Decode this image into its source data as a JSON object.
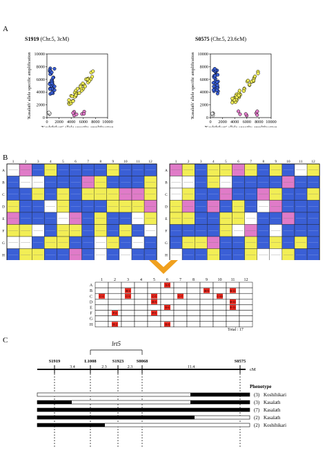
{
  "panels": {
    "a": "A",
    "b": "B",
    "c": "C"
  },
  "scatter": [
    {
      "marker": "S1919",
      "position": "(Chr.5, 3cM)",
      "xlabel": "'Koshihikari' allele specific amplification",
      "ylabel": "'Kasalath' allele specific amplification",
      "xticks": [
        "0",
        "2000",
        "4000",
        "6000",
        "8000",
        "10000"
      ],
      "yticks": [
        "0",
        "2000",
        "4000",
        "6000",
        "8000",
        "10000"
      ]
    },
    {
      "marker": "S0575",
      "position": "(Chr.5, 23.6cM)",
      "xlabel": "'Koshihikari' allele specific amplification",
      "ylabel": "'Kasalath' allele specific amplification",
      "xticks": [
        "0",
        "2000",
        "4000",
        "6000",
        "8000",
        "10000"
      ],
      "yticks": [
        "0",
        "2000",
        "4000",
        "6000",
        "8000",
        "10000"
      ]
    }
  ],
  "colors": {
    "blue": "#3a5fd6",
    "yellow": "#f2ee55",
    "pink": "#e07bc8",
    "red": "#e8261c",
    "arrow": "#f0a01e"
  },
  "plate": {
    "cols": [
      "1",
      "2",
      "3",
      "4",
      "5",
      "6",
      "7",
      "8",
      "9",
      "10",
      "11",
      "12"
    ],
    "rows": [
      "A",
      "B",
      "C",
      "D",
      "E",
      "F",
      "G",
      "H"
    ]
  },
  "recombinants": {
    "cells": [
      {
        "row": "A",
        "col": 6,
        "label": "A-6"
      },
      {
        "row": "B",
        "col": 3,
        "label": "B-3"
      },
      {
        "row": "B",
        "col": 9,
        "label": "B-9"
      },
      {
        "row": "B",
        "col": 11,
        "label": "B-11"
      },
      {
        "row": "C",
        "col": 1,
        "label": "C-1"
      },
      {
        "row": "C",
        "col": 3,
        "label": "C-3"
      },
      {
        "row": "C",
        "col": 5,
        "label": "C-5"
      },
      {
        "row": "C",
        "col": 7,
        "label": "C-7"
      },
      {
        "row": "C",
        "col": 10,
        "label": "C-10"
      },
      {
        "row": "D",
        "col": 5,
        "label": "D-5"
      },
      {
        "row": "D",
        "col": 11,
        "label": "D-11"
      },
      {
        "row": "E",
        "col": 6,
        "label": "E-6"
      },
      {
        "row": "E",
        "col": 11,
        "label": "E-11"
      },
      {
        "row": "F",
        "col": 2,
        "label": "F-2"
      },
      {
        "row": "F",
        "col": 5,
        "label": "F-5"
      },
      {
        "row": "H",
        "col": 2,
        "label": "H-2"
      },
      {
        "row": "H",
        "col": 6,
        "label": "H-6"
      }
    ],
    "total": "Total : 17"
  },
  "map": {
    "qtl": "lrt5",
    "unit": "cM",
    "markers": [
      "S1919",
      "L1008",
      "S1923",
      "S0068",
      "S0575"
    ],
    "distances": [
      "3.4",
      "2.3",
      "2.3",
      "11.4"
    ],
    "phenotype_header": "Phenotype",
    "rows": [
      {
        "count": "(3)",
        "phenotype": "Koshihikari"
      },
      {
        "count": "(3)",
        "phenotype": "Kasalath"
      },
      {
        "count": "(7)",
        "phenotype": "Kasalath"
      },
      {
        "count": "(2)",
        "phenotype": "Kasalath"
      },
      {
        "count": "(2)",
        "phenotype": "Koshihikari"
      }
    ]
  }
}
